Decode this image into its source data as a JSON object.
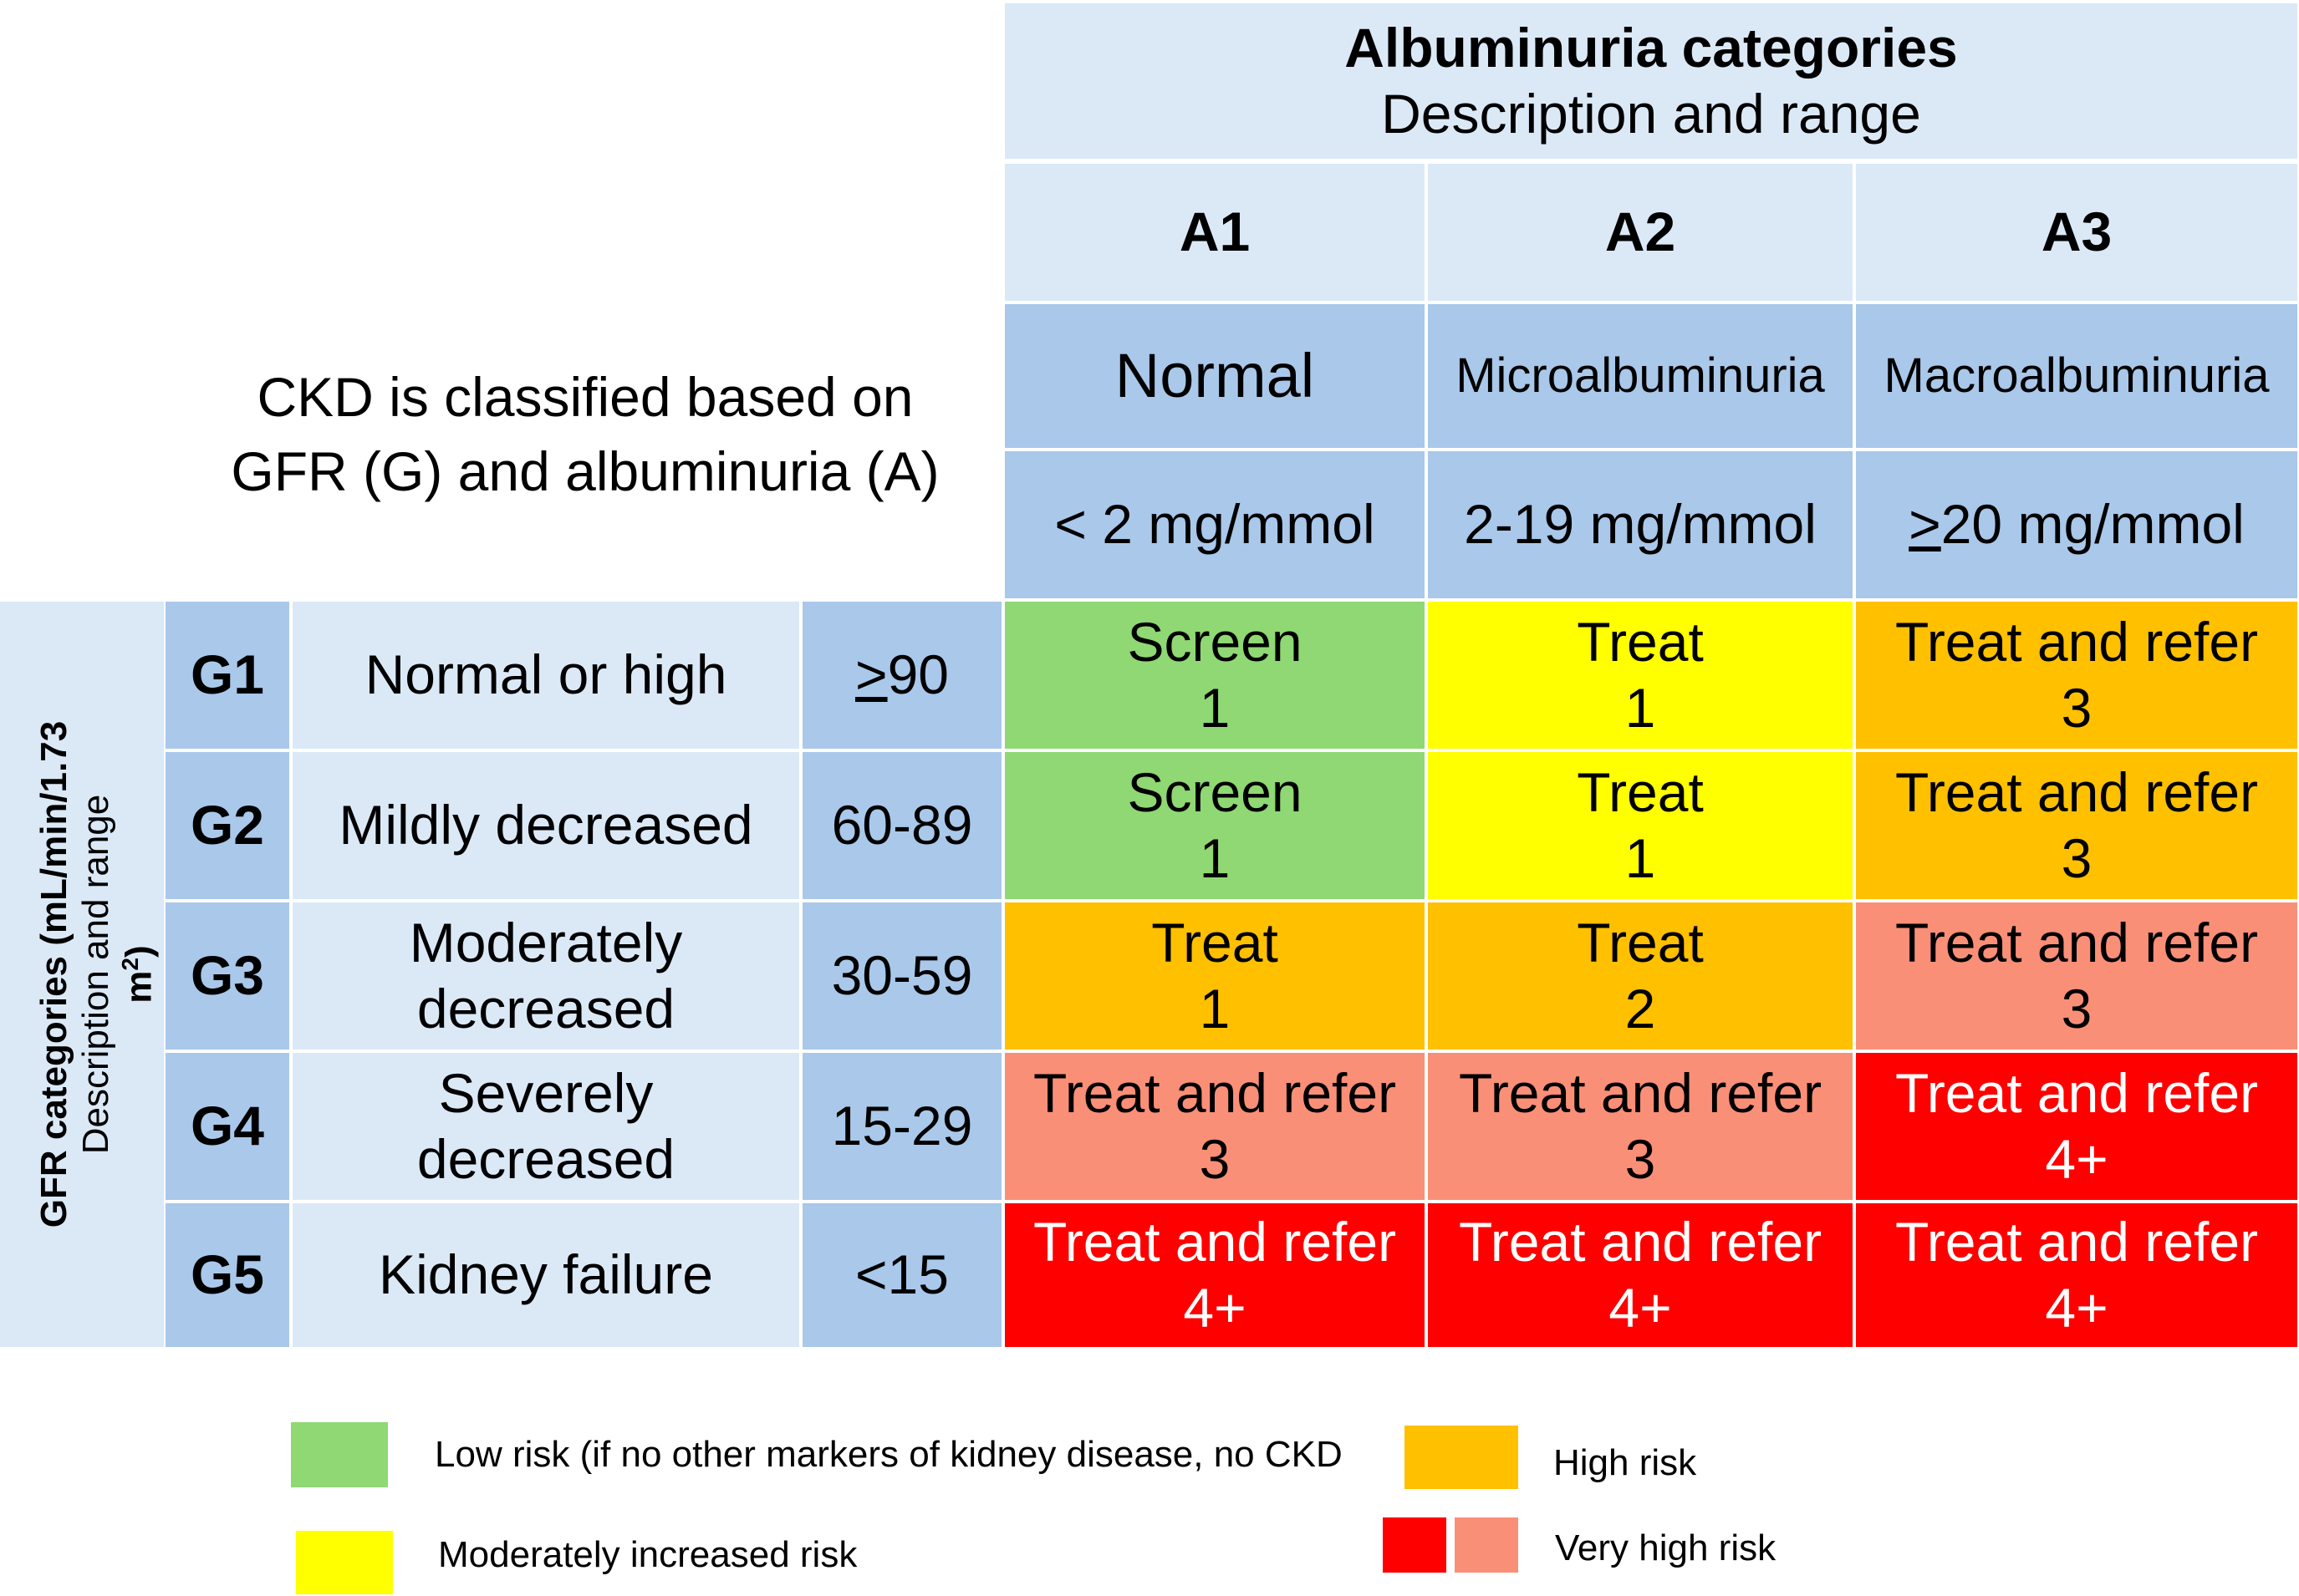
{
  "header": {
    "title": "Albuminuria categories",
    "subtitle": "Description and range",
    "columns": [
      {
        "code": "A1",
        "name": "Normal",
        "range": "< 2 mg/mmol",
        "range_prefix": "",
        "range_rest": "< 2 mg/mmol"
      },
      {
        "code": "A2",
        "name": "Microalbuminuria",
        "range": "2-19 mg/mmol",
        "range_prefix": "",
        "range_rest": "2-19 mg/mmol"
      },
      {
        "code": "A3",
        "name": "Macroalbuminuria",
        "range": ">20 mg/mmol",
        "range_prefix": ">",
        "range_rest": "20 mg/mmol"
      }
    ]
  },
  "intro": {
    "line1": "CKD is classified based on",
    "line2": "GFR (G) and albuminuria (A)"
  },
  "side_label": {
    "title": "GFR categories (mL/min/1.73",
    "unit_tail": "m",
    "superscript": "2",
    "close": ")",
    "subtitle": "Description and range"
  },
  "rows": [
    {
      "code": "G1",
      "description": "Normal or high",
      "range_prefix": ">",
      "range_rest": "90",
      "cells": [
        {
          "action": "Screen",
          "level": "1",
          "risk": "low"
        },
        {
          "action": "Treat",
          "level": "1",
          "risk": "moderate"
        },
        {
          "action": "Treat and refer",
          "level": "3",
          "risk": "high"
        }
      ]
    },
    {
      "code": "G2",
      "description": "Mildly decreased",
      "range_prefix": "",
      "range_rest": "60-89",
      "cells": [
        {
          "action": "Screen",
          "level": "1",
          "risk": "low"
        },
        {
          "action": "Treat",
          "level": "1",
          "risk": "moderate"
        },
        {
          "action": "Treat and refer",
          "level": "3",
          "risk": "high"
        }
      ]
    },
    {
      "code": "G3",
      "description_line1": "Moderately",
      "description_line2": "decreased",
      "range_prefix": "",
      "range_rest": "30-59",
      "cells": [
        {
          "action": "Treat",
          "level": "1",
          "risk": "high"
        },
        {
          "action": "Treat",
          "level": "2",
          "risk": "high"
        },
        {
          "action": "Treat and refer",
          "level": "3",
          "risk": "very-high-light"
        }
      ]
    },
    {
      "code": "G4",
      "description_line1": "Severely",
      "description_line2": "decreased",
      "range_prefix": "",
      "range_rest": "15-29",
      "cells": [
        {
          "action": "Treat and refer",
          "level": "3",
          "risk": "very-high-light"
        },
        {
          "action": "Treat and refer",
          "level": "3",
          "risk": "very-high-light"
        },
        {
          "action": "Treat and refer",
          "level": "4+",
          "risk": "very-high"
        }
      ]
    },
    {
      "code": "G5",
      "description": "Kidney failure",
      "range_prefix": "",
      "range_rest": "<15",
      "cells": [
        {
          "action": "Treat and refer",
          "level": "4+",
          "risk": "very-high"
        },
        {
          "action": "Treat and refer",
          "level": "4+",
          "risk": "very-high"
        },
        {
          "action": "Treat and refer",
          "level": "4+",
          "risk": "very-high"
        }
      ]
    }
  ],
  "legend": {
    "low": "Low risk (if no other markers of kidney disease, no CKD",
    "moderate": "Moderately increased risk",
    "high": "High risk",
    "very_high": "Very high risk"
  },
  "colors": {
    "light_blue": "#dbe9f7",
    "mid_blue": "#a9c8ea",
    "low": "#8fd873",
    "moderate": "#ffff00",
    "high": "#ffc000",
    "very_high_light": "#fa8f77",
    "very_high": "#ff0000"
  }
}
